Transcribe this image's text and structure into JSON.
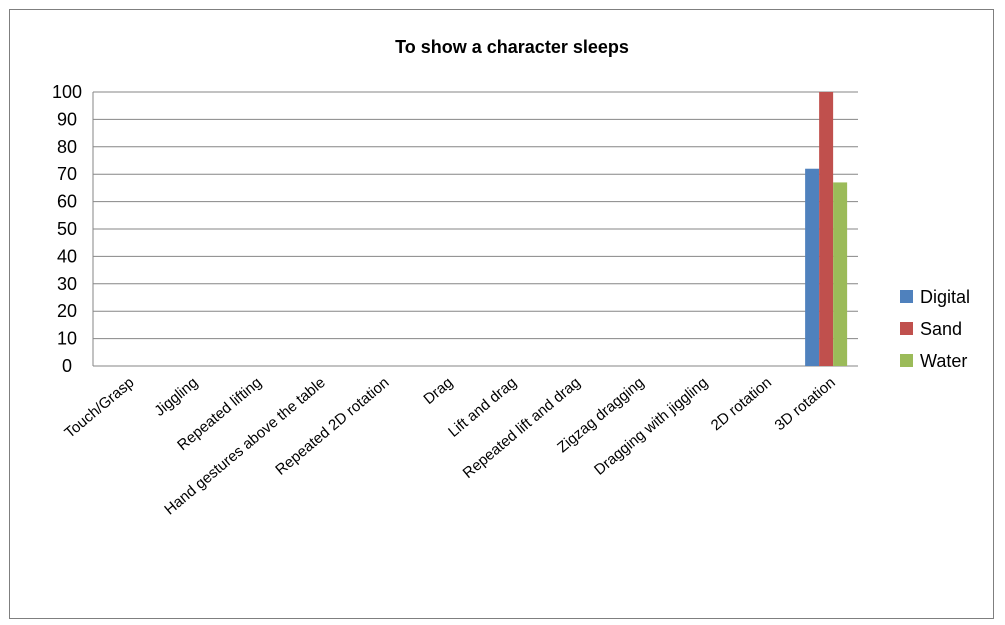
{
  "chart_data": {
    "type": "bar",
    "title": "To show a character sleeps",
    "xlabel": "",
    "ylabel": "",
    "ylim": [
      0,
      100
    ],
    "yticks": [
      0,
      10,
      20,
      30,
      40,
      50,
      60,
      70,
      80,
      90,
      100
    ],
    "grid": true,
    "legend_position": "right",
    "categories": [
      "Touch/Grasp",
      "Jiggling",
      "Repeated lifting",
      "Hand gestures above the table",
      "Repeated 2D rotation",
      "Drag",
      "Lift and drag",
      "Repeated lift and drag",
      "Zigzag dragging",
      "Dragging with jiggling",
      "2D rotation",
      "3D rotation"
    ],
    "series": [
      {
        "name": "Digital",
        "color": "#4f81bd",
        "values": [
          0,
          0,
          0,
          0,
          0,
          0,
          0,
          0,
          0,
          0,
          0,
          72
        ]
      },
      {
        "name": "Sand",
        "color": "#c0504d",
        "values": [
          0,
          0,
          0,
          0,
          0,
          0,
          0,
          0,
          0,
          0,
          0,
          100
        ]
      },
      {
        "name": "Water",
        "color": "#9bbb59",
        "values": [
          0,
          0,
          0,
          0,
          0,
          0,
          0,
          0,
          0,
          0,
          0,
          67
        ]
      }
    ]
  }
}
